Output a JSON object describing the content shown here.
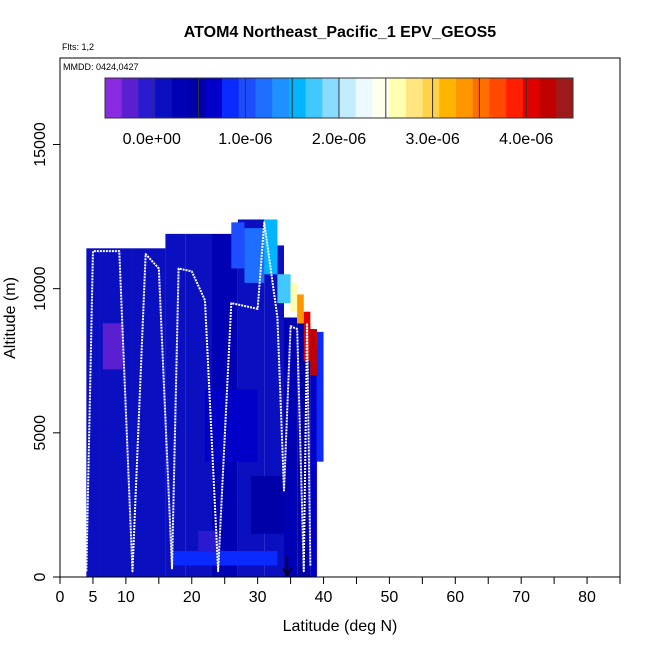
{
  "chart_data": {
    "type": "heatmap",
    "title": "ATOM4 Northeast_Pacific_1 EPV_GEOS5",
    "flights_note": "Flts: 1,2",
    "dates_note": "MMDD: 0424,0427",
    "xlabel": "Latitude (deg N)",
    "ylabel": "Altitude (m)",
    "xlim": [
      0,
      85
    ],
    "ylim": [
      0,
      18000
    ],
    "x_ticks": [
      0,
      5,
      10,
      20,
      30,
      40,
      50,
      60,
      70,
      80
    ],
    "x_minor_ticks": [
      15,
      25,
      35,
      45,
      55,
      65,
      75,
      85
    ],
    "y_ticks": [
      0,
      5000,
      10000,
      15000
    ],
    "grid": false,
    "colorbar": {
      "placement": "top-inside",
      "range": [
        -5e-07,
        4.5e-06
      ],
      "tick_labels": [
        "0.0e+00",
        "1.0e-06",
        "2.0e-06",
        "3.0e-06",
        "4.0e-06"
      ],
      "tick_values": [
        0,
        1e-06,
        2e-06,
        3e-06,
        4e-06
      ],
      "colors": [
        "#8a2be2",
        "#5a1fd0",
        "#2a1ad0",
        "#0a10c0",
        "#0000b4",
        "#0000a8",
        "#0000c8",
        "#0a2aff",
        "#1d4dff",
        "#1e6eff",
        "#1f90ff",
        "#00b4ff",
        "#40c8ff",
        "#88dcff",
        "#c4ecff",
        "#eef8ff",
        "#fffff0",
        "#ffffb0",
        "#ffe680",
        "#ffd24a",
        "#ffb400",
        "#ff9600",
        "#ff6e00",
        "#ff4a00",
        "#ff1e00",
        "#e00000",
        "#c00000",
        "#9e1a1a"
      ]
    },
    "curtain_cells": [
      {
        "lat": [
          4,
          6
        ],
        "alt": [
          0,
          11400
        ],
        "value": 1e-07
      },
      {
        "lat": [
          6,
          11
        ],
        "alt": [
          0,
          11400
        ],
        "value": 2e-07
      },
      {
        "lat": [
          6.5,
          9.5
        ],
        "alt": [
          7200,
          8800
        ],
        "value": -2e-07
      },
      {
        "lat": [
          11,
          16
        ],
        "alt": [
          0,
          11400
        ],
        "value": 1e-07
      },
      {
        "lat": [
          16,
          19
        ],
        "alt": [
          0,
          11900
        ],
        "value": 2e-07
      },
      {
        "lat": [
          19,
          23
        ],
        "alt": [
          0,
          11900
        ],
        "value": 1e-07
      },
      {
        "lat": [
          23,
          27
        ],
        "alt": [
          0,
          11900
        ],
        "value": 3e-07
      },
      {
        "lat": [
          27,
          31
        ],
        "alt": [
          0,
          12400
        ],
        "value": 2e-07
      },
      {
        "lat": [
          31,
          34
        ],
        "alt": [
          0,
          11500
        ],
        "value": 2e-07
      },
      {
        "lat": [
          34,
          36
        ],
        "alt": [
          0,
          9000
        ],
        "value": 3e-07
      },
      {
        "lat": [
          36,
          38
        ],
        "alt": [
          0,
          8800
        ],
        "value": 4e-07
      },
      {
        "lat": [
          38,
          39
        ],
        "alt": [
          0,
          8000
        ],
        "value": 6e-07
      },
      {
        "lat": [
          39,
          40
        ],
        "alt": [
          4000,
          8500
        ],
        "value": 8e-07
      },
      {
        "lat": [
          17,
          33
        ],
        "alt": [
          400,
          900
        ],
        "value": 9e-07
      },
      {
        "lat": [
          21,
          24
        ],
        "alt": [
          900,
          1600
        ],
        "value": -1e-07
      },
      {
        "lat": [
          26,
          28
        ],
        "alt": [
          10700,
          12300
        ],
        "value": 1e-06
      },
      {
        "lat": [
          28,
          31
        ],
        "alt": [
          10200,
          12100
        ],
        "value": 1.2e-06
      },
      {
        "lat": [
          31,
          33
        ],
        "alt": [
          10500,
          12400
        ],
        "value": 1.5e-06
      },
      {
        "lat": [
          33,
          35
        ],
        "alt": [
          9500,
          10500
        ],
        "value": 1.8e-06
      },
      {
        "lat": [
          35,
          36
        ],
        "alt": [
          9200,
          10200
        ],
        "value": 2.6e-06
      },
      {
        "lat": [
          36,
          37
        ],
        "alt": [
          8800,
          9800
        ],
        "value": 3.4e-06
      },
      {
        "lat": [
          37,
          38
        ],
        "alt": [
          7500,
          9200
        ],
        "value": 4e-06
      },
      {
        "lat": [
          38,
          39
        ],
        "alt": [
          7000,
          8600
        ],
        "value": 4.3e-06
      },
      {
        "lat": [
          22,
          30
        ],
        "alt": [
          4000,
          6500
        ],
        "value": 6e-07
      },
      {
        "lat": [
          29,
          34
        ],
        "alt": [
          1500,
          3500
        ],
        "value": 5e-07
      }
    ],
    "flight_track": {
      "lat": [
        4,
        5,
        9,
        11,
        13,
        15,
        17,
        18,
        20,
        22,
        24,
        26,
        28,
        30,
        31,
        33,
        34,
        35,
        36,
        37,
        37.5,
        38
      ],
      "alt": [
        200,
        11300,
        11300,
        200,
        11200,
        10700,
        300,
        10700,
        10600,
        9600,
        200,
        9500,
        9400,
        9300,
        12300,
        9000,
        3000,
        8700,
        8600,
        200,
        8800,
        400
      ]
    },
    "marker": {
      "type": "arrow-down",
      "lat": 34.5,
      "alt": 0
    }
  }
}
